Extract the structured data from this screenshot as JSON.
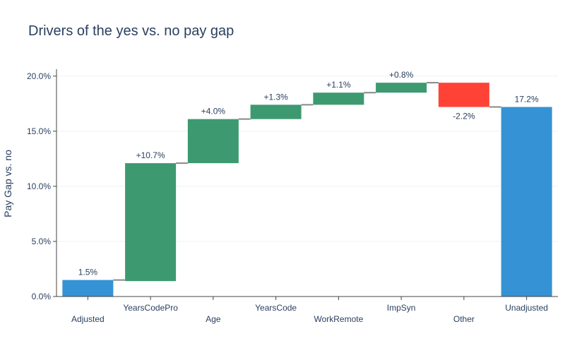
{
  "chart_data": {
    "type": "waterfall",
    "title": "Drivers of the yes vs. no pay gap",
    "xlabel": "",
    "ylabel": "Pay Gap vs. no",
    "ylim": [
      0,
      20.5
    ],
    "yticks": [
      0,
      5,
      10,
      15,
      20
    ],
    "ytick_labels": [
      "0.0%",
      "5.0%",
      "10.0%",
      "15.0%",
      "20.0%"
    ],
    "grid": true,
    "legend": false,
    "categories": [
      "Adjusted",
      "YearsCodePro",
      "Age",
      "YearsCode",
      "WorkRemote",
      "ImpSyn",
      "Other",
      "Unadjusted"
    ],
    "measures": [
      "absolute",
      "relative",
      "relative",
      "relative",
      "relative",
      "relative",
      "relative",
      "total"
    ],
    "values": [
      1.5,
      10.7,
      4.0,
      1.3,
      1.1,
      0.8,
      -2.2,
      17.2
    ],
    "bases": [
      0,
      1.4,
      12.1,
      16.1,
      17.4,
      18.5,
      19.4,
      0
    ],
    "tops": [
      1.5,
      12.1,
      16.1,
      17.4,
      18.5,
      19.4,
      17.2,
      17.2
    ],
    "labels": [
      "1.5%",
      "+10.7%",
      "+4.0%",
      "+1.3%",
      "+1.1%",
      "+0.8%",
      "-2.2%",
      "17.2%"
    ],
    "colors": {
      "total": "#3592d4",
      "increasing": "#3d9970",
      "decreasing": "#ff4136",
      "connector": "#888888",
      "grid": "#ebf0f8",
      "axis": "#444444",
      "text": "#2a3f5f"
    }
  }
}
